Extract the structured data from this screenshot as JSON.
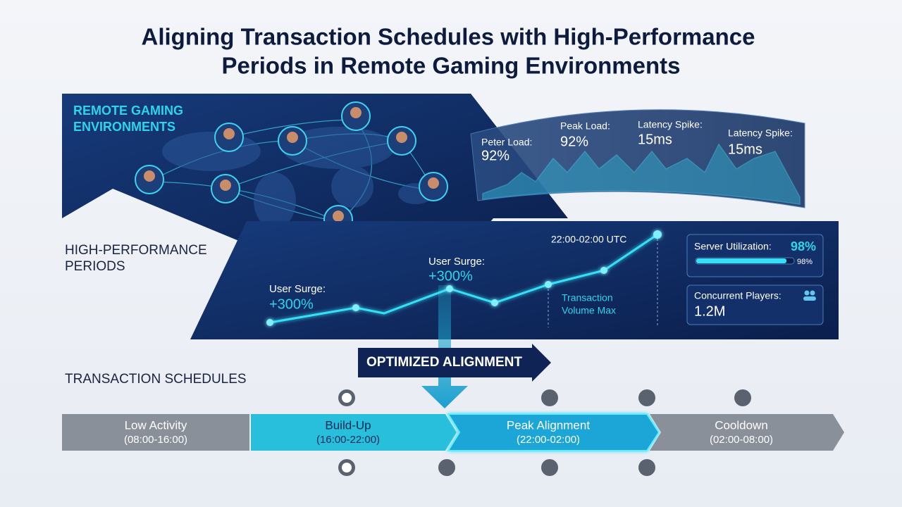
{
  "header": {
    "title_lines": [
      "Aligning Transaction Schedules with High-Performance",
      "Periods in Remote Gaming Environments"
    ]
  },
  "sections": {
    "remote": [
      "REMOTE GAMING",
      "ENVIRONMENTS"
    ],
    "periods": [
      "HIGH-PERFORMANCE",
      "PERIODS"
    ],
    "schedules": "TRANSACTION SCHEDULES"
  },
  "metrics": [
    {
      "label": "Peter Load:",
      "value": "92%"
    },
    {
      "label": "Peak Load:",
      "value": "92%"
    },
    {
      "label": "Latency Spike:",
      "value": "15ms"
    },
    {
      "label": "Latency Spike:",
      "value": "15ms"
    }
  ],
  "performance": {
    "window": "22:00-02:00 UTC",
    "surges": [
      {
        "label": "User Surge:",
        "value": "+300%"
      },
      {
        "label": "User Surge:",
        "value": "+300%"
      }
    ],
    "transaction_note": [
      "Transaction",
      "Volume Max"
    ],
    "server": {
      "label": "Server Utilization:",
      "value": "98%",
      "bar_label": "98%"
    },
    "players": {
      "label": "Concurrent Players:",
      "value": "1.2M"
    }
  },
  "alignment": "OPTIMIZED ALIGNMENT",
  "phases": [
    {
      "name": "Low Activity",
      "time": "(08:00-16:00)"
    },
    {
      "name": "Build-Up",
      "time": "(16:00-22:00)"
    },
    {
      "name": "Peak Alignment",
      "time": "(22:00-02:00)"
    },
    {
      "name": "Cooldown",
      "time": "(02:00-08:00)"
    }
  ]
}
